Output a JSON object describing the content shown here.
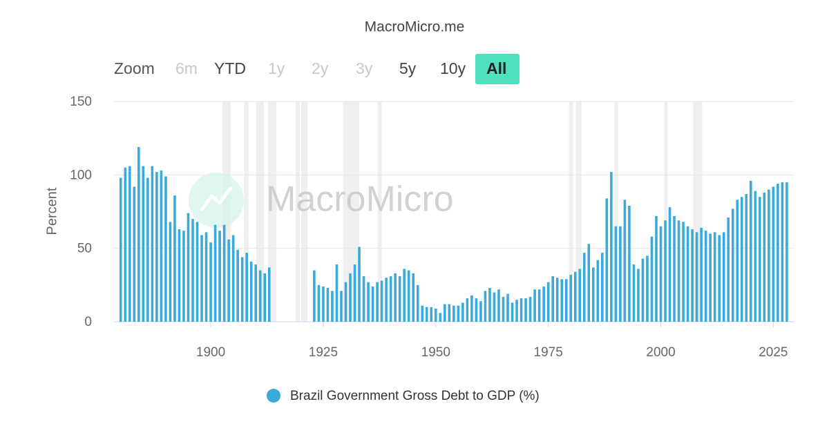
{
  "chart_data": {
    "type": "bar",
    "title": "MacroMicro.me",
    "watermark": "MacroMicro",
    "range_selector": {
      "label": "Zoom",
      "buttons": [
        "6m",
        "YTD",
        "1y",
        "2y",
        "3y",
        "5y",
        "10y",
        "All"
      ],
      "disabled": [
        0,
        2,
        3,
        4
      ],
      "selected": 7
    },
    "y_label": "Percent",
    "x": [
      1880,
      1881,
      1882,
      1883,
      1884,
      1885,
      1886,
      1887,
      1888,
      1889,
      1890,
      1891,
      1892,
      1893,
      1894,
      1895,
      1896,
      1897,
      1898,
      1899,
      1900,
      1901,
      1902,
      1903,
      1904,
      1905,
      1906,
      1907,
      1908,
      1909,
      1910,
      1911,
      1912,
      1913,
      1914,
      1915,
      1916,
      1917,
      1918,
      1919,
      1920,
      1921,
      1922,
      1923,
      1924,
      1925,
      1926,
      1927,
      1928,
      1929,
      1930,
      1931,
      1932,
      1933,
      1934,
      1935,
      1936,
      1937,
      1938,
      1939,
      1940,
      1941,
      1942,
      1943,
      1944,
      1945,
      1946,
      1947,
      1948,
      1949,
      1950,
      1951,
      1952,
      1953,
      1954,
      1955,
      1956,
      1957,
      1958,
      1959,
      1960,
      1961,
      1962,
      1963,
      1964,
      1965,
      1966,
      1967,
      1968,
      1969,
      1970,
      1971,
      1972,
      1973,
      1974,
      1975,
      1976,
      1977,
      1978,
      1979,
      1980,
      1981,
      1982,
      1983,
      1984,
      1985,
      1986,
      1987,
      1988,
      1989,
      1990,
      1991,
      1992,
      1993,
      1994,
      1995,
      1996,
      1997,
      1998,
      1999,
      2000,
      2001,
      2002,
      2003,
      2004,
      2005,
      2006,
      2007,
      2008,
      2009,
      2010,
      2011,
      2012,
      2013,
      2014,
      2015,
      2016,
      2017,
      2018,
      2019,
      2020,
      2021,
      2022,
      2023,
      2024,
      2025,
      2026,
      2027,
      2028
    ],
    "series": [
      {
        "name": "Brazil Government Gross Debt to GDP (%)",
        "color": "#3aaad8",
        "values": [
          98,
          105,
          106,
          92,
          119,
          106,
          98,
          106,
          102,
          103,
          99,
          68,
          86,
          63,
          62,
          74,
          70,
          68,
          59,
          61,
          54,
          66,
          62,
          66,
          56,
          59,
          49,
          44,
          47,
          41,
          39,
          35,
          33,
          37,
          null,
          null,
          null,
          null,
          null,
          null,
          null,
          null,
          null,
          35,
          25,
          24,
          23,
          21,
          39,
          21,
          27,
          33,
          39,
          51,
          31,
          27,
          24,
          27,
          28,
          30,
          31,
          33,
          31,
          36,
          35,
          33,
          25,
          11,
          10,
          10,
          9,
          6,
          12,
          12,
          11,
          11,
          13,
          16,
          18,
          16,
          14,
          21,
          23,
          20,
          22,
          17,
          19,
          13,
          15,
          16,
          16,
          17,
          22,
          22,
          24,
          27,
          31,
          30,
          29,
          29,
          32,
          34,
          36,
          47,
          53,
          37,
          42,
          47,
          84,
          102,
          65,
          65,
          83,
          79,
          39,
          36,
          43,
          45,
          58,
          72,
          65,
          69,
          78,
          72,
          69,
          68,
          65,
          63,
          61,
          64,
          62,
          60,
          61,
          59,
          61,
          71,
          77,
          83,
          85,
          87,
          96,
          89,
          85,
          88,
          90,
          92,
          94,
          95,
          95
        ]
      }
    ],
    "shaded_periods": [
      [
        1902.6,
        1904.4
      ],
      [
        1907.4,
        1908.4
      ],
      [
        1910.1,
        1911.8
      ],
      [
        1912.7,
        1914.6
      ],
      [
        1918.9,
        1919.8
      ],
      [
        1920.1,
        1921.5
      ],
      [
        1929.4,
        1933
      ],
      [
        1937.1,
        1938
      ],
      [
        1979.6,
        1980.5
      ],
      [
        1981.1,
        1982.4
      ],
      [
        1989.7,
        1990.5
      ],
      [
        2000.8,
        2001.5
      ],
      [
        2007.2,
        2009.2
      ]
    ],
    "shade_color": "#efefef",
    "xlim": [
      1878.5,
      2029.7
    ],
    "xticks": [
      1900,
      1925,
      1950,
      1975,
      2000,
      2025
    ],
    "ylim": [
      0,
      150
    ],
    "yticks": [
      0,
      50,
      100,
      150
    ],
    "grid": true
  }
}
